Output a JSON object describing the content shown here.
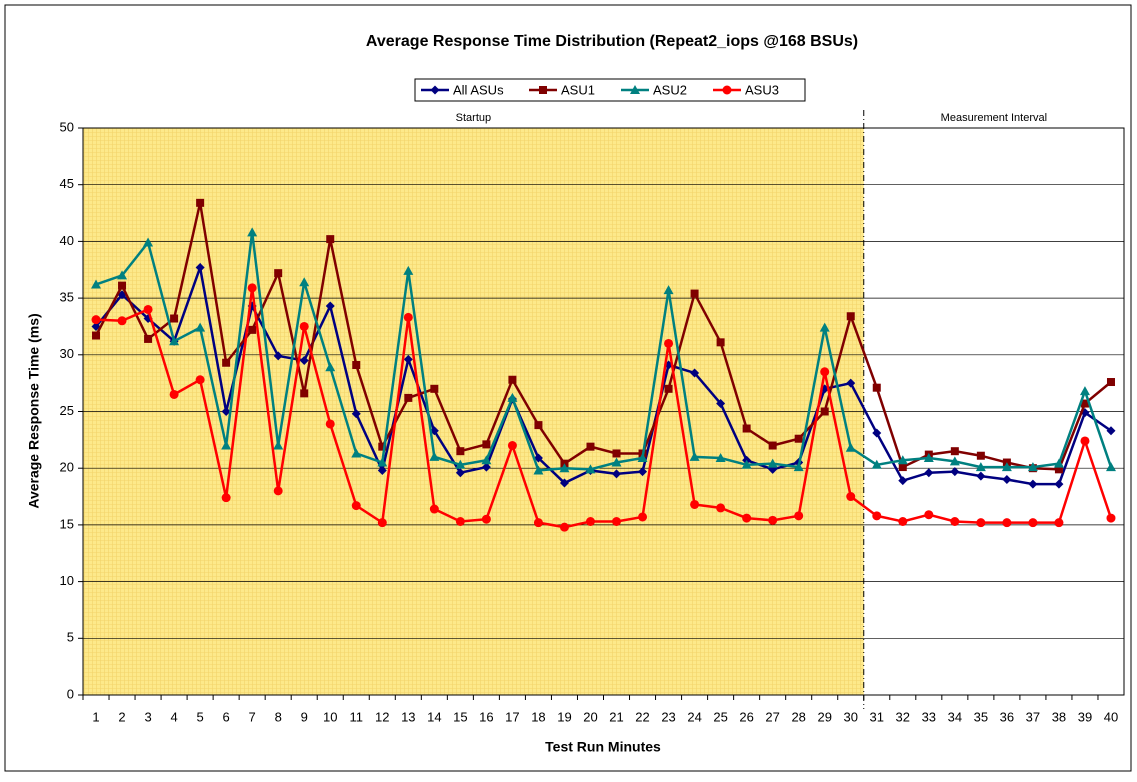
{
  "chart_data": {
    "type": "line",
    "title": "Average Response Time Distribution (Repeat2_iops @168 BSUs)",
    "x_label": "Test Run Minutes",
    "y_label": "Average Response Time (ms)",
    "categories": [
      "1",
      "2",
      "3",
      "4",
      "5",
      "6",
      "7",
      "8",
      "9",
      "10",
      "11",
      "12",
      "13",
      "14",
      "15",
      "16",
      "17",
      "18",
      "19",
      "20",
      "21",
      "22",
      "23",
      "24",
      "25",
      "26",
      "27",
      "28",
      "29",
      "30",
      "31",
      "32",
      "33",
      "34",
      "35",
      "36",
      "37",
      "38",
      "39",
      "40"
    ],
    "ylim": [
      0,
      50
    ],
    "yticks": [
      0,
      5,
      10,
      15,
      20,
      25,
      30,
      35,
      40,
      45,
      50
    ],
    "grid": true,
    "legend": "top",
    "phases": [
      {
        "label": "Startup",
        "from": 1,
        "to": 30,
        "shaded": true
      },
      {
        "label": "Measurement Interval",
        "from": 31,
        "to": 40,
        "shaded": false
      }
    ],
    "series": [
      {
        "name": "All ASUs",
        "color": "#000080",
        "marker": "diamond",
        "values": [
          32.5,
          35.3,
          33.2,
          31.2,
          37.7,
          25.0,
          34.3,
          29.9,
          29.5,
          34.3,
          24.8,
          19.8,
          29.6,
          23.3,
          19.6,
          20.1,
          26.1,
          20.9,
          18.7,
          19.8,
          19.5,
          19.7,
          29.1,
          28.4,
          25.7,
          20.7,
          19.9,
          20.5,
          27.0,
          27.5,
          23.1,
          18.9,
          19.6,
          19.7,
          19.3,
          19.0,
          18.6,
          18.6,
          24.9,
          23.3
        ]
      },
      {
        "name": "ASU1",
        "color": "#800000",
        "marker": "square",
        "values": [
          31.7,
          36.1,
          31.4,
          33.2,
          43.4,
          29.3,
          32.2,
          37.2,
          26.6,
          40.2,
          29.1,
          21.9,
          26.2,
          27.0,
          21.5,
          22.1,
          27.8,
          23.8,
          20.4,
          21.9,
          21.3,
          21.3,
          27.0,
          35.4,
          31.1,
          23.5,
          22.0,
          22.6,
          25.0,
          33.4,
          27.1,
          20.1,
          21.2,
          21.5,
          21.1,
          20.5,
          20.0,
          19.9,
          25.7,
          27.6
        ]
      },
      {
        "name": "ASU2",
        "color": "#008080",
        "marker": "triangle",
        "values": [
          36.2,
          37.0,
          39.9,
          31.2,
          32.4,
          22.0,
          40.8,
          22.0,
          36.4,
          28.9,
          21.3,
          20.5,
          37.4,
          21.0,
          20.3,
          20.7,
          26.2,
          19.8,
          20.0,
          19.9,
          20.5,
          20.9,
          35.7,
          21.0,
          20.9,
          20.3,
          20.4,
          20.1,
          32.4,
          21.8,
          20.3,
          20.7,
          20.9,
          20.6,
          20.1,
          20.1,
          20.1,
          20.4,
          26.8,
          20.1
        ]
      },
      {
        "name": "ASU3",
        "color": "#ff0000",
        "marker": "circle",
        "values": [
          33.1,
          33.0,
          34.0,
          26.5,
          27.8,
          17.4,
          35.9,
          18.0,
          32.5,
          23.9,
          16.7,
          15.2,
          33.3,
          16.4,
          15.3,
          15.5,
          22.0,
          15.2,
          14.8,
          15.3,
          15.3,
          15.7,
          31.0,
          16.8,
          16.5,
          15.6,
          15.4,
          15.8,
          28.5,
          17.5,
          15.8,
          15.3,
          15.9,
          15.3,
          15.2,
          15.2,
          15.2,
          15.2,
          22.4,
          15.6
        ]
      }
    ]
  }
}
